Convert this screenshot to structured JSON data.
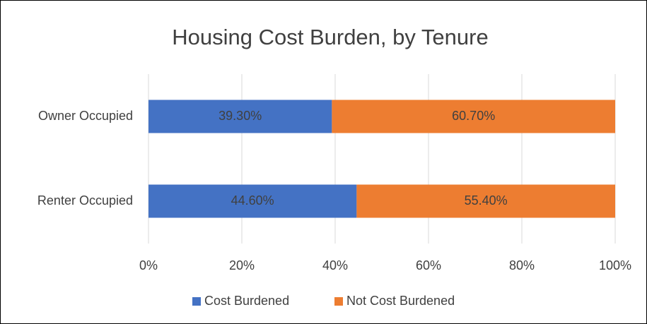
{
  "chart_data": {
    "type": "stacked_barh",
    "title": "Housing Cost Burden, by Tenure",
    "categories": [
      "Owner Occupied",
      "Renter Occupied"
    ],
    "series": [
      {
        "name": "Cost Burdened",
        "color": "#4472c4",
        "values": [
          39.3,
          44.6
        ],
        "value_labels": [
          "39.30%",
          "44.60%"
        ]
      },
      {
        "name": "Not Cost Burdened",
        "color": "#ed7d31",
        "values": [
          60.7,
          55.4
        ],
        "value_labels": [
          "60.70%",
          "55.40%"
        ]
      }
    ],
    "xlim": [
      0,
      100
    ],
    "xticks": [
      {
        "value": 0,
        "label": "0%"
      },
      {
        "value": 20,
        "label": "20%"
      },
      {
        "value": 40,
        "label": "40%"
      },
      {
        "value": 60,
        "label": "60%"
      },
      {
        "value": 80,
        "label": "80%"
      },
      {
        "value": 100,
        "label": "100%"
      }
    ],
    "grid": true,
    "legend": "bottom"
  }
}
